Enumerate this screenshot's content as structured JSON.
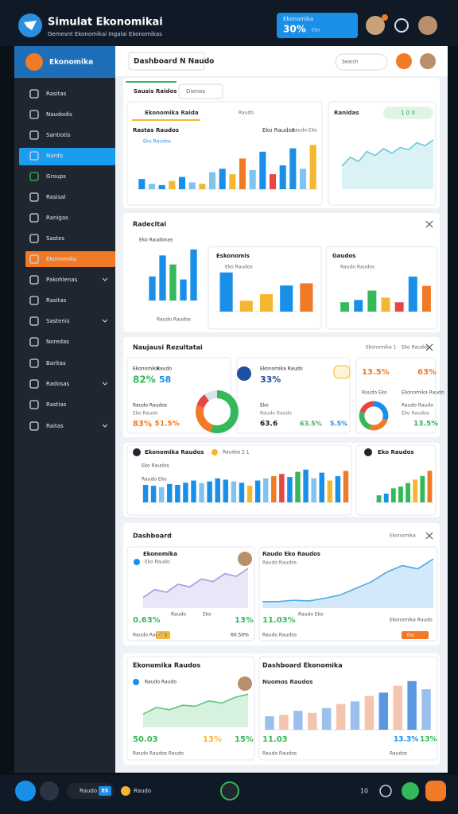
{
  "header": {
    "texts": [
      "Simulat Ekonomikai",
      "Gemesnt Ekonomikai Ingalai Ekonomikas",
      "Ekonomika",
      "30%",
      "Eko"
    ]
  },
  "sidebar": {
    "title": "Ekonomika",
    "items": [
      "Rasitas",
      "Naudodis",
      "Santiotis",
      "Nardo",
      "Groups",
      "Rasisal",
      "Ranigas",
      "Sastes",
      "Ekonomika",
      "Pakohlenas",
      "Rasitas",
      "Sastenis",
      "Noredas",
      "Baritas",
      "Radosas",
      "Rastias",
      "Raitas"
    ]
  },
  "topbar": {
    "texts": [
      "Dashboard N Naudo",
      "Search"
    ]
  },
  "panel1": {
    "texts": [
      "Sausis Raidos",
      "Dienos",
      "Ekonomika Raida",
      "Raudo",
      "Rastas Raudos",
      "Eko Raudos",
      "Raudo Eko",
      "Eko Raudos",
      "Ranidas",
      "1 0 0"
    ]
  },
  "panel2": {
    "texts": [
      "Radecitai",
      "Eko Raudonas",
      "Raudo Raudos",
      "Eskonomis",
      "Eko Raudos",
      "Gaudos",
      "Raudo Raudos"
    ]
  },
  "panel3": {
    "texts": [
      "Naujausi Rezultatai",
      "Ekonomika 1",
      "Eko Raudos",
      "Ekonomika",
      "Raudo",
      "82%",
      "58",
      "Raudo Raudos",
      "Eko Raudo",
      "83%",
      ", 51.5%",
      "Ekonomika Raudo",
      "33%",
      "Eko",
      "Raudo Raudo",
      "63.6",
      "63.5%",
      "5.5%",
      "13.5%",
      "63%",
      "Raudo Eko",
      "Ekonomika Raudo",
      "Raudo Raudo",
      "Eko Raudos",
      "13.5%"
    ]
  },
  "panel4": {
    "texts": [
      "Ekonomika Raudos",
      "Raudos 2.1",
      "Eko Raudos",
      "Raudo Eko",
      "Eko Raudos"
    ]
  },
  "panel5": {
    "texts": [
      "Dashboard",
      "Ekonomika",
      "Ekonomika",
      "Eko Raudo",
      "0.63%",
      "Raudo",
      "Eko",
      "13%",
      "Raudo Raudos",
      "Eko",
      "60.50%",
      "Raudo Eko Raudos",
      "Raudo Raudos",
      "11.03%",
      "Raudo Eko",
      "Ekonomika Raudo",
      "Eko",
      "Raudo Raudos"
    ]
  },
  "panel6": {
    "texts": [
      "Ekonomika Raudos",
      "Raudo Raudo",
      "50.03",
      "13%",
      "15%",
      "Raudo Raudos Raudo",
      "Dashboard Ekonomika",
      "Nuomos Raudos",
      "11.03",
      "13.3%",
      "13%",
      "Raudo Raudos",
      "Raudos"
    ]
  },
  "bottom": {
    "texts": [
      "Raudo",
      "ES",
      "Raudo",
      "10"
    ]
  },
  "chart_data": [
    {
      "type": "bar",
      "values": [
        15,
        8,
        6,
        12,
        18,
        10,
        8,
        25,
        30,
        22,
        45,
        28,
        55,
        22,
        35,
        60,
        30,
        65
      ],
      "colors": [
        "#1a8fe8",
        "#7fc4ee",
        "#1a8fe8",
        "#f5b731",
        "#1a8fe8",
        "#7fc4ee",
        "#f5b731",
        "#7fc4ee",
        "#1a8fe8",
        "#f5b731",
        "#f07a26",
        "#7fc4ee",
        "#1a8fe8",
        "#e84545",
        "#1a8fe8",
        "#1a8fe8",
        "#7fc4ee",
        "#f5b731"
      ],
      "ylim": [
        0,
        70
      ]
    },
    {
      "type": "area",
      "values": [
        40,
        55,
        48,
        65,
        58,
        70,
        62,
        72,
        68,
        80,
        75,
        85
      ],
      "color": "#6cc8dc",
      "ylim": [
        0,
        100
      ]
    },
    {
      "type": "bar",
      "values": [
        40,
        75,
        60,
        35,
        85
      ],
      "colors": [
        "#1a8fe8",
        "#1a8fe8",
        "#34b85a",
        "#1a8fe8",
        "#1a8fe8"
      ],
      "ylim": [
        0,
        90
      ]
    },
    {
      "type": "bar",
      "values": [
        90,
        25,
        40,
        60,
        65
      ],
      "colors": [
        "#1a8fe8",
        "#f5b731",
        "#f5b731",
        "#1a8fe8",
        "#f07a26"
      ],
      "ylim": [
        0,
        95
      ]
    },
    {
      "type": "bar",
      "values": [
        20,
        25,
        45,
        30,
        20,
        75,
        55
      ],
      "colors": [
        "#34b85a",
        "#1a8fe8",
        "#34b85a",
        "#f5b731",
        "#e84545",
        "#1a8fe8",
        "#f07a26"
      ],
      "ylim": [
        0,
        80
      ]
    },
    {
      "type": "pie",
      "values": [
        55,
        25,
        10,
        10
      ],
      "colors": [
        "#34b85a",
        "#f07a26",
        "#e84545",
        "#dfe3e8"
      ]
    },
    {
      "type": "pie",
      "values": [
        30,
        25,
        25,
        20
      ],
      "colors": [
        "#1a8fe8",
        "#f07a26",
        "#34b85a",
        "#e84545"
      ]
    },
    {
      "type": "bar",
      "values": [
        40,
        38,
        35,
        42,
        40,
        45,
        50,
        44,
        48,
        55,
        52,
        48,
        45,
        38,
        50,
        55,
        60,
        65,
        58,
        70,
        75,
        55,
        68,
        50,
        60,
        72
      ],
      "colors": [
        "#1a8fe8",
        "#1a8fe8",
        "#7fc4ee",
        "#1a8fe8",
        "#1a8fe8",
        "#1a8fe8",
        "#1a8fe8",
        "#7fc4ee",
        "#1a8fe8",
        "#1a8fe8",
        "#1a8fe8",
        "#7fc4ee",
        "#1a8fe8",
        "#f5b731",
        "#1a8fe8",
        "#7fc4ee",
        "#f07a26",
        "#e84545",
        "#1a8fe8",
        "#34b85a",
        "#1a8fe8",
        "#7fc4ee",
        "#1a8fe8",
        "#f5b731",
        "#1a8fe8",
        "#f07a26"
      ],
      "ylim": [
        0,
        80
      ]
    },
    {
      "type": "bar",
      "values": [
        20,
        25,
        40,
        45,
        55,
        65,
        75,
        90
      ],
      "colors": [
        "#34b85a",
        "#1a8fe8",
        "#34b85a",
        "#34b85a",
        "#34b85a",
        "#f5b731",
        "#34b85a",
        "#f07a26"
      ],
      "ylim": [
        0,
        95
      ]
    },
    {
      "type": "area",
      "values": [
        20,
        35,
        30,
        45,
        40,
        55,
        50,
        65,
        60,
        75
      ],
      "color": "#a49ce0",
      "ylim": [
        0,
        90
      ]
    },
    {
      "type": "area",
      "values": [
        10,
        10,
        12,
        11,
        15,
        20,
        30,
        40,
        55,
        65,
        60,
        75
      ],
      "color": "#4ea9e6",
      "ylim": [
        0,
        85
      ]
    },
    {
      "type": "area",
      "values": [
        30,
        45,
        40,
        50,
        48,
        60,
        55,
        68,
        75
      ],
      "color": "#5cc87a",
      "ylim": [
        0,
        90
      ]
    },
    {
      "type": "bar",
      "values": [
        20,
        22,
        28,
        25,
        32,
        38,
        42,
        50,
        55,
        65,
        72,
        60
      ],
      "colors": [
        "#9cc0ee",
        "#f3c4ae",
        "#9cc0ee",
        "#f3c4ae",
        "#9cc0ee",
        "#f3c4ae",
        "#9cc0ee",
        "#f3c4ae",
        "#5b96e0",
        "#f3c4ae",
        "#5b96e0",
        "#9cc0ee"
      ],
      "ylim": [
        0,
        80
      ]
    }
  ]
}
